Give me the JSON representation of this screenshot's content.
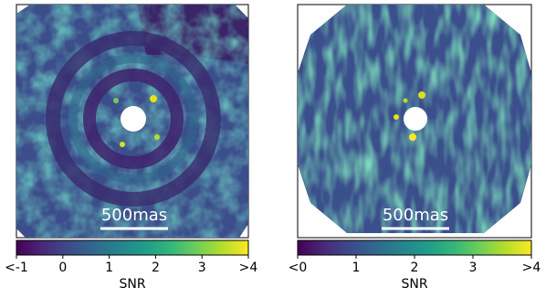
{
  "chart_data": [
    {
      "type": "image",
      "colormap": "viridis",
      "scale_bar_label": "500mas",
      "colorbar_label": "SNR",
      "clim": [
        -1,
        4
      ],
      "cticks": [
        {
          "value": -1,
          "label": "<-1"
        },
        0,
        1,
        2,
        3,
        {
          "value": 4,
          "label": ">4"
        }
      ]
    },
    {
      "type": "image",
      "colormap": "viridis",
      "scale_bar_label": "500mas",
      "colorbar_label": "SNR",
      "clim": [
        0,
        4
      ],
      "cticks": [
        {
          "value": 0,
          "label": "<0"
        },
        1,
        2,
        3,
        {
          "value": 4,
          "label": ">4"
        }
      ]
    }
  ]
}
